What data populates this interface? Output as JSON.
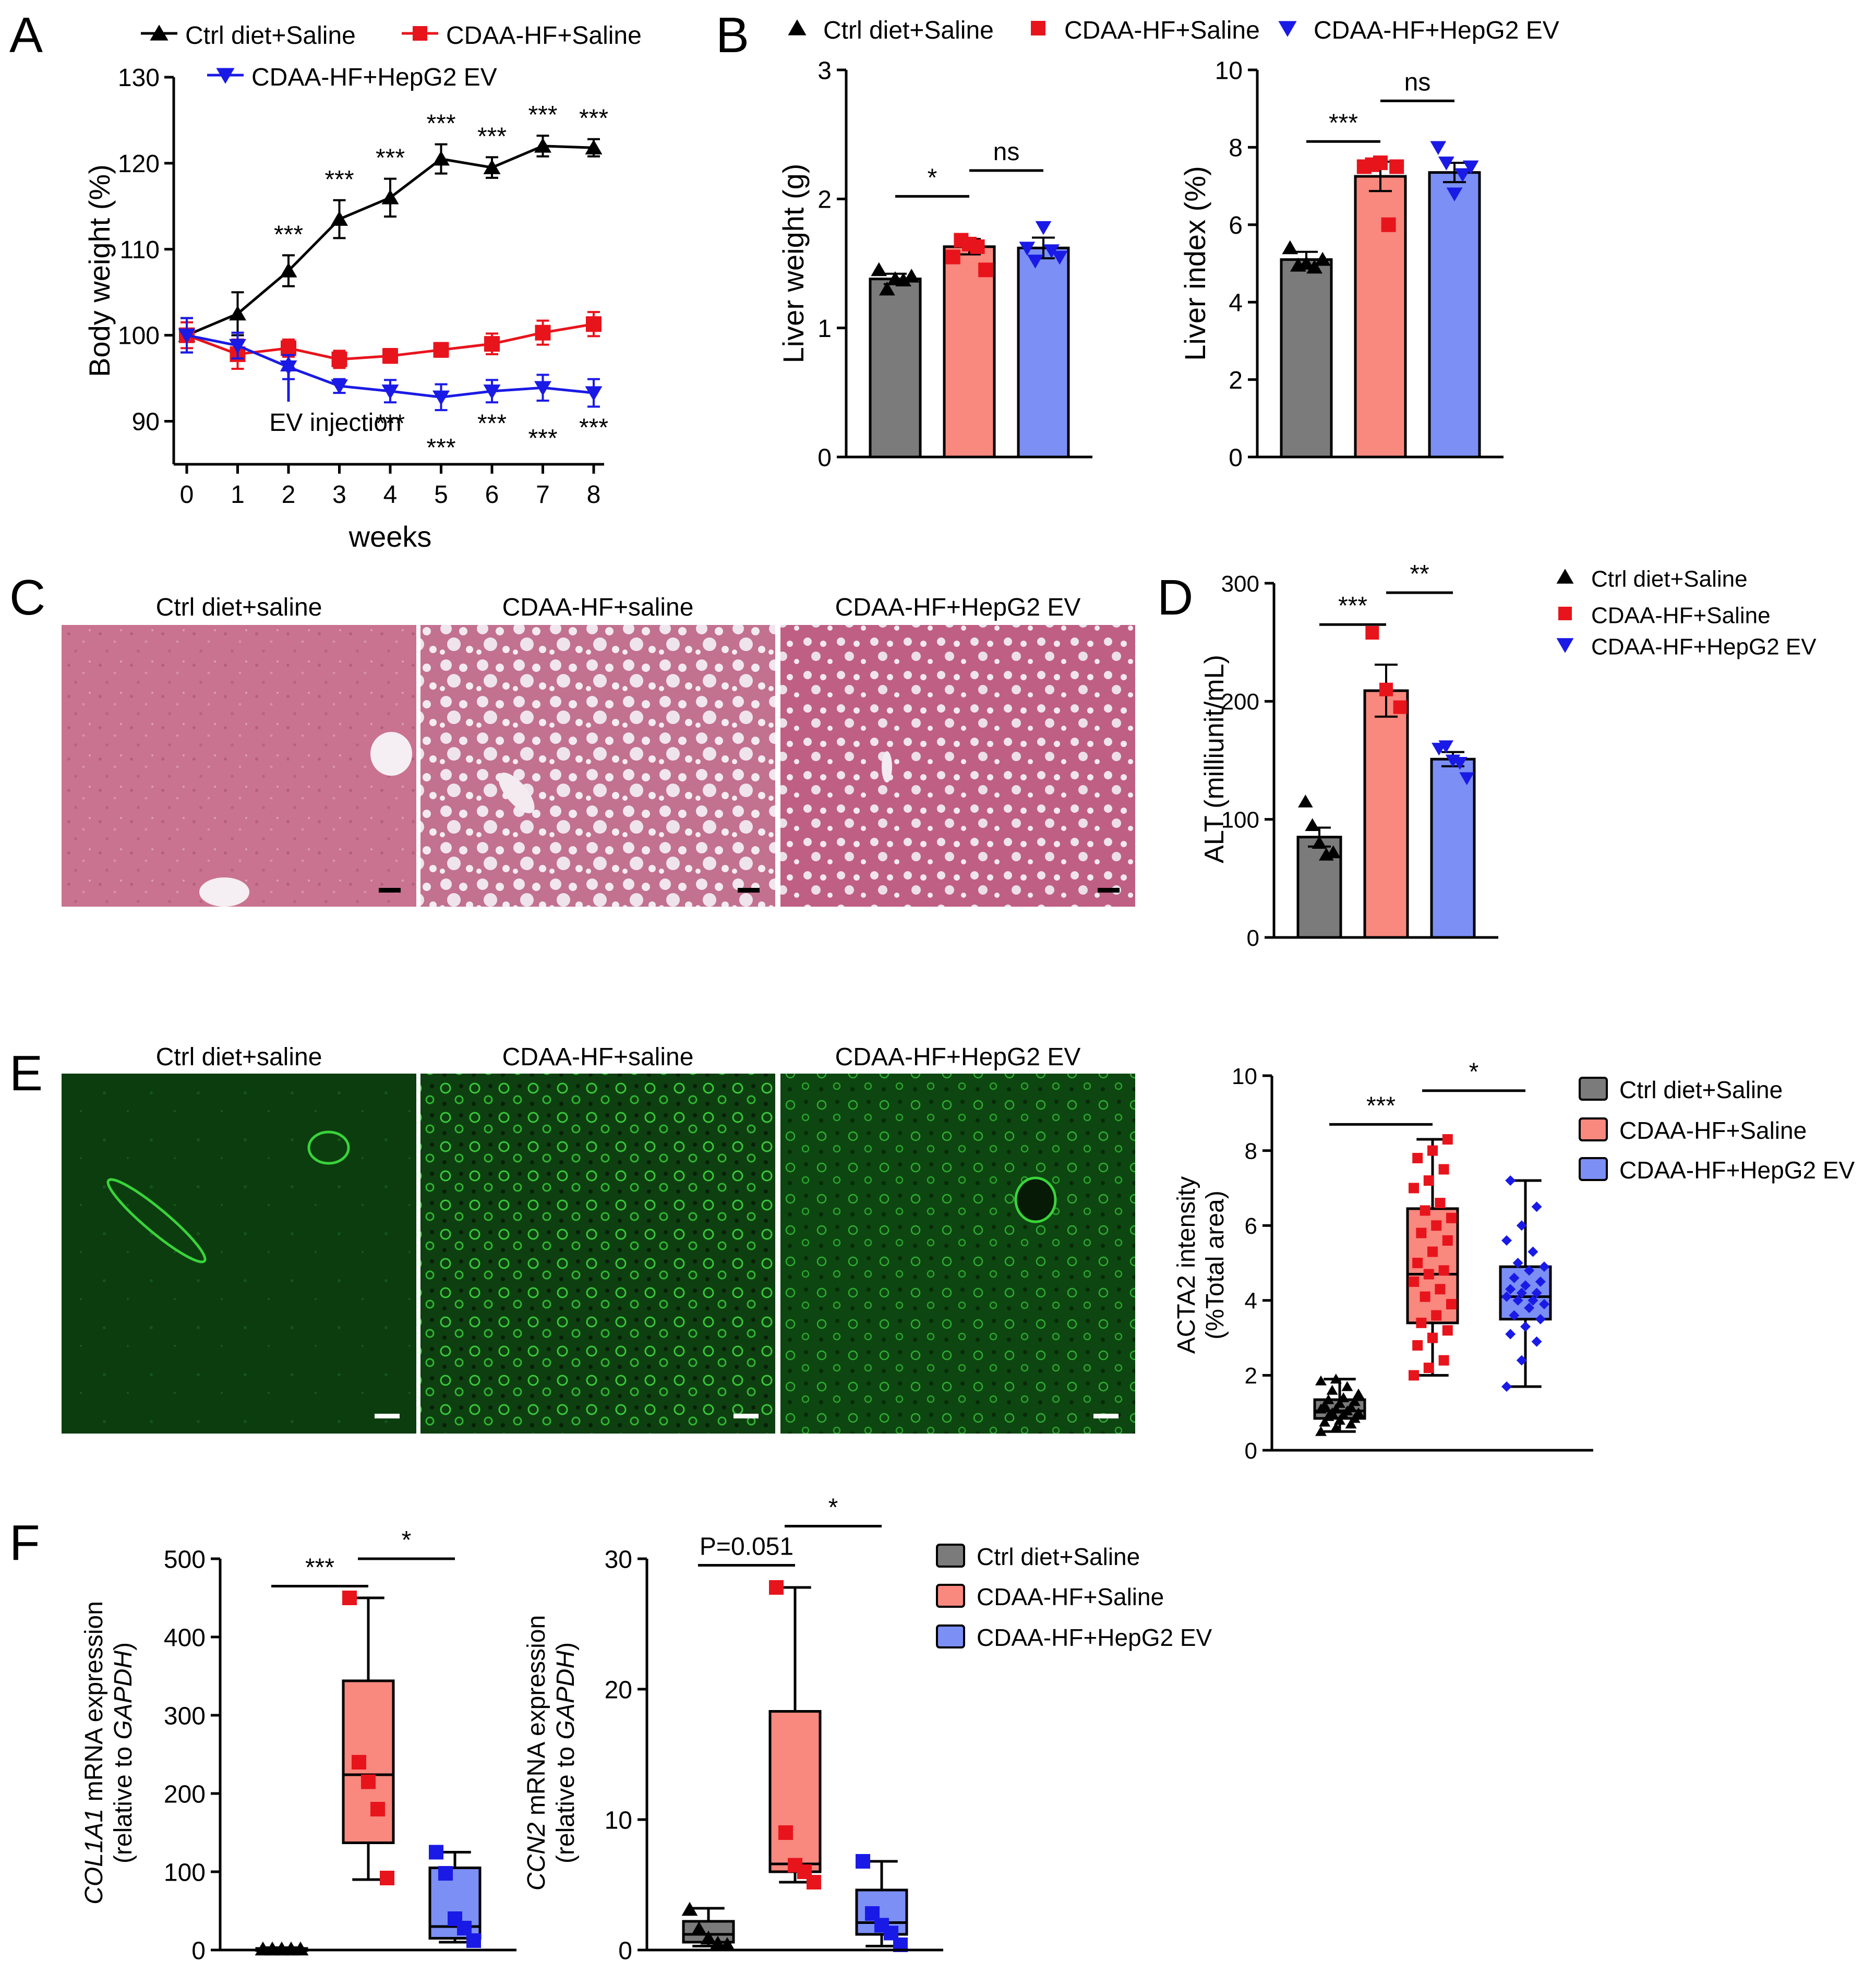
{
  "colors": {
    "ctrl_line": "#000000",
    "hf_line": "#e8141c",
    "ev_line": "#1a1ae6",
    "ctrl_bar": "#7b7b7b",
    "hf_bar": "#f9887e",
    "ev_bar": "#7b8ff5",
    "he_tissue": "#c96a86",
    "if_bg": "#0b3a0b",
    "if_signal": "#39d43a"
  },
  "panels": {
    "A": {
      "letter": "A"
    },
    "B": {
      "letter": "B"
    },
    "C": {
      "letter": "C"
    },
    "D": {
      "letter": "D"
    },
    "E": {
      "letter": "E"
    },
    "F": {
      "letter": "F"
    }
  },
  "groups": {
    "ctrl": "Ctrl diet+Saline",
    "hf": "CDAA-HF+Saline",
    "ev": "CDAA-HF+HepG2 EV"
  },
  "images": {
    "C_titles": [
      "Ctrl diet+saline",
      "CDAA-HF+saline",
      "CDAA-HF+HepG2 EV"
    ],
    "E_titles": [
      "Ctrl diet+saline",
      "CDAA-HF+saline",
      "CDAA-HF+HepG2 EV"
    ]
  },
  "chart_data": [
    {
      "id": "A",
      "type": "line",
      "xlabel": "weeks",
      "ylabel": "Body weight (%)",
      "x": [
        0,
        1,
        2,
        3,
        4,
        5,
        6,
        7,
        8
      ],
      "xlim": [
        0,
        8
      ],
      "ylim": [
        85,
        130
      ],
      "yticks": [
        90,
        100,
        110,
        120,
        130
      ],
      "series": [
        {
          "name": "Ctrl diet+Saline",
          "key": "ctrl",
          "marker": "triangle-up",
          "values": [
            100,
            102.5,
            107.5,
            113.5,
            116,
            120.5,
            119.5,
            122,
            121.8
          ],
          "errors": [
            2,
            2.5,
            1.8,
            2.2,
            2.2,
            1.7,
            1.2,
            1.2,
            1.0
          ]
        },
        {
          "name": "CDAA-HF+Saline",
          "key": "hf",
          "marker": "square",
          "values": [
            100,
            97.8,
            98.5,
            97.2,
            97.6,
            98.3,
            99,
            100.3,
            101.3
          ],
          "errors": [
            1.5,
            1.7,
            1.0,
            1.0,
            0.8,
            0.8,
            1.2,
            1.4,
            1.4
          ]
        },
        {
          "name": "CDAA-HF+HepG2 EV",
          "key": "ev",
          "marker": "triangle-down",
          "values": [
            100,
            98.8,
            96.3,
            94.1,
            93.5,
            92.8,
            93.5,
            93.9,
            93.3
          ],
          "errors": [
            2.0,
            1.5,
            1.4,
            0.8,
            1.3,
            1.5,
            1.3,
            1.5,
            1.6
          ]
        }
      ],
      "annotations": {
        "upper_stars": {
          "weeks": [
            2,
            3,
            4,
            5,
            6,
            7,
            8
          ],
          "text": "***"
        },
        "lower_stars": {
          "weeks": [
            4,
            5,
            6,
            7,
            8
          ],
          "text": "***"
        },
        "arrow": {
          "week": 2,
          "text": "EV injection"
        }
      }
    },
    {
      "id": "B1",
      "type": "bar",
      "ylabel": "Liver weight (g)",
      "ylim": [
        0,
        3
      ],
      "yticks": [
        0,
        1,
        2,
        3
      ],
      "categories": [
        "Ctrl diet+Saline",
        "CDAA-HF+Saline",
        "CDAA-HF+HepG2 EV"
      ],
      "values": [
        1.38,
        1.63,
        1.62
      ],
      "errors": [
        0.04,
        0.06,
        0.08
      ],
      "points": [
        [
          1.45,
          1.3,
          1.38,
          1.37,
          1.4
        ],
        [
          1.55,
          1.68,
          1.65,
          1.63,
          1.45
        ],
        [
          1.62,
          1.52,
          1.78,
          1.6,
          1.55
        ]
      ],
      "comparisons": [
        {
          "from": 0,
          "to": 1,
          "label": "*",
          "y": 2.02
        },
        {
          "from": 1,
          "to": 2,
          "label": "ns",
          "y": 2.22
        }
      ]
    },
    {
      "id": "B2",
      "type": "bar",
      "ylabel": "Liver index (%)",
      "ylim": [
        0,
        10
      ],
      "yticks": [
        0,
        2,
        4,
        6,
        8,
        10
      ],
      "categories": [
        "Ctrl diet+Saline",
        "CDAA-HF+Saline",
        "CDAA-HF+HepG2 EV"
      ],
      "values": [
        5.1,
        7.25,
        7.35
      ],
      "errors": [
        0.2,
        0.38,
        0.25
      ],
      "points": [
        [
          5.4,
          4.95,
          5.0,
          4.9,
          5.1
        ],
        [
          7.5,
          7.55,
          7.6,
          6.0,
          7.5
        ],
        [
          8.0,
          7.6,
          6.8,
          7.3,
          7.5
        ]
      ],
      "comparisons": [
        {
          "from": 0,
          "to": 1,
          "label": "***",
          "y": 8.15
        },
        {
          "from": 1,
          "to": 2,
          "label": "ns",
          "y": 9.2
        }
      ]
    },
    {
      "id": "D",
      "type": "bar",
      "ylabel": "ALT (milliunit/mL)",
      "ylim": [
        0,
        300
      ],
      "yticks": [
        0,
        100,
        200,
        300
      ],
      "categories": [
        "Ctrl diet+Saline",
        "CDAA-HF+Saline",
        "CDAA-HF+HepG2 EV"
      ],
      "values": [
        85,
        209,
        151
      ],
      "errors": [
        8,
        22,
        6
      ],
      "points": [
        [
          115,
          95,
          80,
          70,
          72
        ],
        [
          258,
          210,
          195
        ],
        [
          160,
          162,
          150,
          148,
          135
        ]
      ],
      "comparisons": [
        {
          "from": 0,
          "to": 1,
          "label": "***",
          "y": 265
        },
        {
          "from": 1,
          "to": 2,
          "label": "**",
          "y": 292
        }
      ]
    },
    {
      "id": "E",
      "type": "box",
      "ylabel": "ACTA2 intensity\n(%Total area)",
      "ylim": [
        0,
        10
      ],
      "yticks": [
        0,
        2,
        4,
        6,
        8,
        10
      ],
      "categories": [
        "Ctrl diet+Saline",
        "CDAA-HF+Saline",
        "CDAA-HF+HepG2 EV"
      ],
      "boxes": [
        {
          "min": 0.5,
          "q1": 0.85,
          "median": 1.05,
          "q3": 1.35,
          "max": 1.9
        },
        {
          "min": 2.0,
          "q1": 3.4,
          "median": 4.7,
          "q3": 6.45,
          "max": 8.3
        },
        {
          "min": 1.7,
          "q1": 3.5,
          "median": 4.1,
          "q3": 4.9,
          "max": 7.2
        }
      ],
      "points": [
        [
          0.5,
          0.6,
          0.7,
          0.75,
          0.8,
          0.85,
          0.9,
          0.95,
          1.0,
          1.0,
          1.05,
          1.1,
          1.1,
          1.15,
          1.2,
          1.25,
          1.3,
          1.35,
          1.4,
          1.5,
          1.6,
          1.7,
          1.85,
          1.9
        ],
        [
          2.0,
          2.2,
          2.4,
          2.8,
          3.0,
          3.2,
          3.4,
          3.6,
          3.9,
          4.1,
          4.3,
          4.5,
          4.7,
          4.8,
          5.0,
          5.3,
          5.6,
          5.8,
          6.0,
          6.2,
          6.4,
          6.6,
          7.0,
          7.2,
          7.5,
          7.8,
          8.0,
          8.3
        ],
        [
          1.7,
          2.4,
          2.9,
          3.1,
          3.3,
          3.5,
          3.6,
          3.8,
          3.9,
          4.0,
          4.0,
          4.1,
          4.2,
          4.2,
          4.3,
          4.4,
          4.5,
          4.6,
          4.8,
          4.9,
          5.0,
          5.3,
          5.6,
          6.0,
          6.5,
          7.2
        ]
      ],
      "comparisons": [
        {
          "from": 0,
          "to": 1,
          "label": "***",
          "y": 8.7
        },
        {
          "from": 1,
          "to": 2,
          "label": "*",
          "y": 9.6
        }
      ]
    },
    {
      "id": "F1",
      "type": "box",
      "ylabel_gene": "COL1A1",
      "ylabel_rest": " mRNA expression",
      "ylabel_line2_pre": "(relative to ",
      "ylabel_line2_gene": "GAPDH",
      "ylabel_line2_post": ")",
      "ylim": [
        0,
        500
      ],
      "yticks": [
        0,
        100,
        200,
        300,
        400,
        500
      ],
      "categories": [
        "Ctrl diet+Saline",
        "CDAA-HF+Saline",
        "CDAA-HF+HepG2 EV"
      ],
      "boxes": [
        {
          "min": 0,
          "q1": 0.5,
          "median": 1,
          "q3": 2,
          "max": 3
        },
        {
          "min": 90,
          "q1": 137,
          "median": 224,
          "q3": 344,
          "max": 450
        },
        {
          "min": 10,
          "q1": 15,
          "median": 30,
          "q3": 105,
          "max": 125
        }
      ],
      "points": [
        [
          1,
          1,
          1,
          1,
          1
        ],
        [
          450,
          240,
          215,
          180,
          92
        ],
        [
          125,
          98,
          40,
          28,
          12
        ]
      ],
      "comparisons": [
        {
          "from": 0,
          "to": 1,
          "label": "***",
          "y": 465
        },
        {
          "from": 1,
          "to": 2,
          "label": "*",
          "y": 500
        }
      ]
    },
    {
      "id": "F2",
      "type": "box",
      "ylabel_gene": "CCN2",
      "ylabel_rest": " mRNA expression",
      "ylabel_line2_pre": "(relative to ",
      "ylabel_line2_gene": "GAPDH",
      "ylabel_line2_post": ")",
      "ylim": [
        0,
        30
      ],
      "yticks": [
        0,
        10,
        20,
        30
      ],
      "categories": [
        "Ctrl diet+Saline",
        "CDAA-HF+Saline",
        "CDAA-HF+HepG2 EV"
      ],
      "boxes": [
        {
          "min": 0.3,
          "q1": 0.6,
          "median": 1.2,
          "q3": 2.2,
          "max": 3.2
        },
        {
          "min": 5.2,
          "q1": 6,
          "median": 6.6,
          "q3": 18.3,
          "max": 27.8
        },
        {
          "min": 0.3,
          "q1": 1.2,
          "median": 2.1,
          "q3": 4.6,
          "max": 6.8
        }
      ],
      "points": [
        [
          3.1,
          1.6,
          0.9,
          0.5,
          0.4
        ],
        [
          27.8,
          9.0,
          6.5,
          6.0,
          5.2
        ],
        [
          6.8,
          2.8,
          1.9,
          1.3,
          0.4
        ]
      ],
      "comparisons": [
        {
          "from": 0,
          "to": 1,
          "label": "P=0.051",
          "y": 29.5
        },
        {
          "from": 1,
          "to": 2,
          "label": "*",
          "y": 32.5
        }
      ]
    }
  ]
}
